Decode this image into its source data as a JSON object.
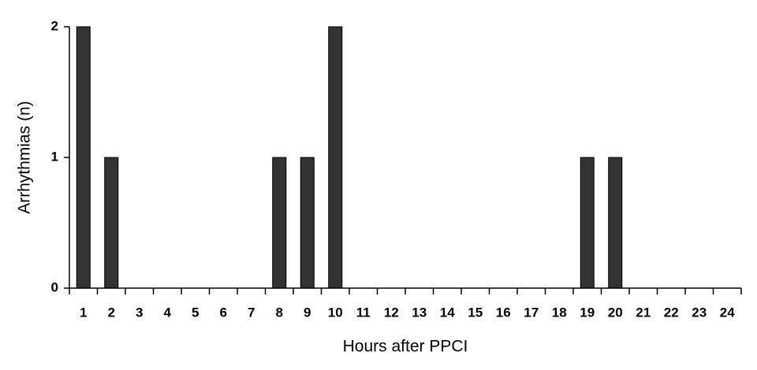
{
  "chart_data": {
    "type": "bar",
    "x_label": "Hours after PPCI",
    "y_label": "Arrhythmias (n)",
    "categories": [
      "1",
      "2",
      "3",
      "4",
      "5",
      "6",
      "7",
      "8",
      "9",
      "10",
      "11",
      "12",
      "13",
      "14",
      "15",
      "16",
      "17",
      "18",
      "19",
      "20",
      "21",
      "22",
      "23",
      "24"
    ],
    "values": [
      2,
      1,
      0,
      0,
      0,
      0,
      0,
      1,
      1,
      2,
      0,
      0,
      0,
      0,
      0,
      0,
      0,
      0,
      1,
      1,
      0,
      0,
      0,
      0
    ],
    "color": "#333333",
    "ylim": [
      0,
      2
    ],
    "yticks": [
      0,
      1,
      2
    ],
    "grid": false
  }
}
